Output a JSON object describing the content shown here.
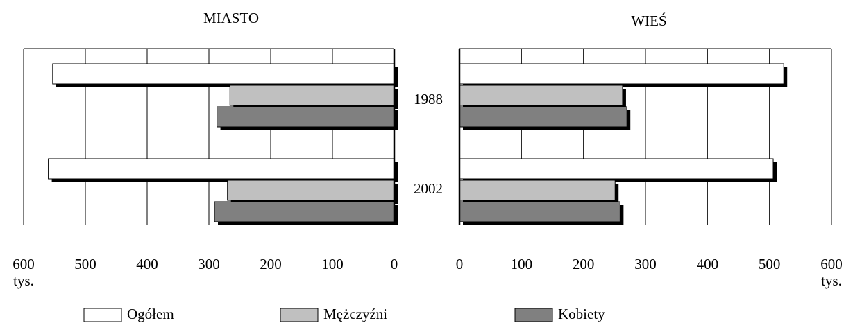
{
  "chart_data": [
    {
      "type": "bar",
      "title": "MIASTO",
      "orientation": "horizontal",
      "reversed": true,
      "categories": [
        "1988",
        "2002"
      ],
      "series": [
        {
          "name": "Ogółem",
          "color": "#ffffff",
          "values": [
            553,
            560
          ]
        },
        {
          "name": "Mężczyźni",
          "color": "#c0c0c0",
          "values": [
            266,
            270
          ]
        },
        {
          "name": "Kobiety",
          "color": "#808080",
          "values": [
            287,
            291
          ]
        }
      ],
      "xlim": [
        0,
        600
      ],
      "xticks": [
        0,
        100,
        200,
        300,
        400,
        500,
        600
      ],
      "unit": "tys.",
      "grid": true
    },
    {
      "type": "bar",
      "title": "WIEŚ",
      "orientation": "horizontal",
      "reversed": false,
      "series": [
        {
          "values": [
            523,
            506
          ]
        },
        {
          "values": [
            263,
            251
          ]
        },
        {
          "values": [
            270,
            259
          ]
        }
      ],
      "xlim": [
        0,
        600
      ],
      "xticks": [
        0,
        100,
        200,
        300,
        400,
        500,
        600
      ],
      "unit": "tys.",
      "grid": true
    }
  ]
}
